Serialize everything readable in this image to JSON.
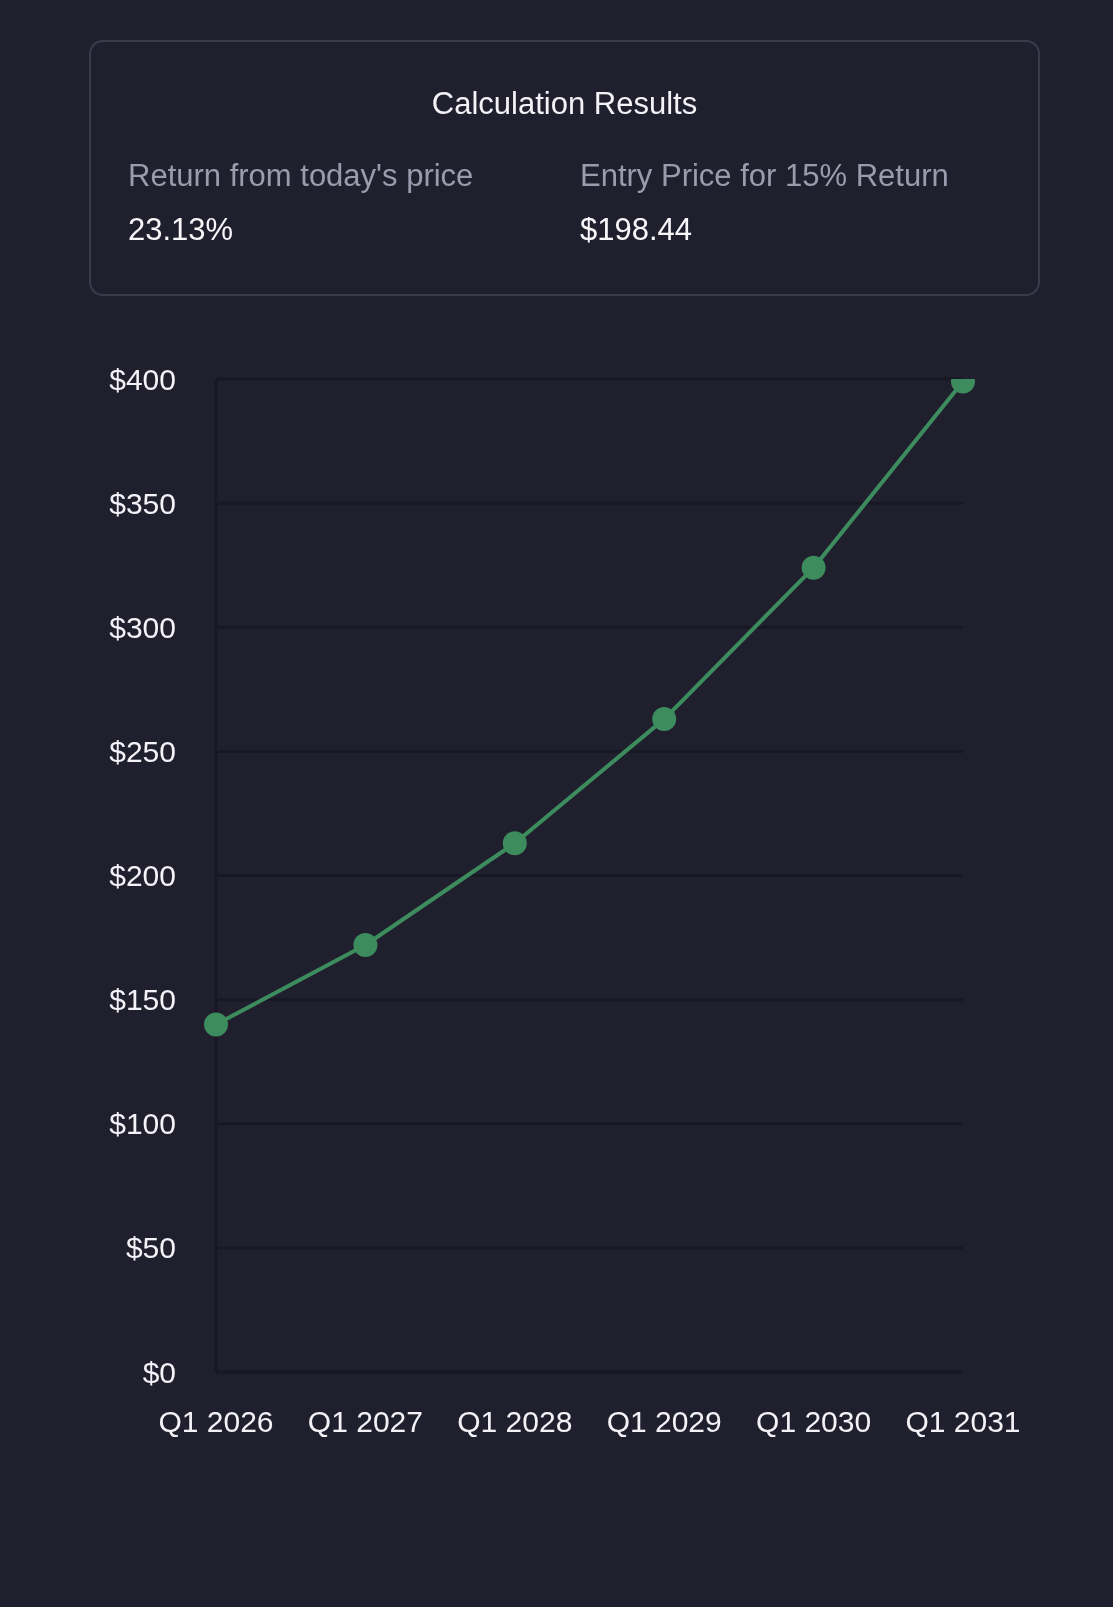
{
  "chart_data": [
    {
      "type": "other",
      "title": "Calculation Results",
      "annotations": [
        "Return from today's price",
        "23.13%",
        "Entry Price for 15% Return",
        "$198.44"
      ]
    },
    {
      "type": "line",
      "categories": [
        "Q1 2026",
        "Q1 2027",
        "Q1 2028",
        "Q1 2029",
        "Q1 2030",
        "Q1 2031"
      ],
      "series": [
        {
          "color": "#3d8c5e",
          "values": [
            140,
            172,
            213,
            263,
            324,
            399
          ]
        }
      ],
      "ylim": [
        0,
        400
      ],
      "yticks": [
        {
          "value": 0,
          "label": "$0"
        },
        {
          "value": 50,
          "label": "$50"
        },
        {
          "value": 100,
          "label": "$100"
        },
        {
          "value": 150,
          "label": "$150"
        },
        {
          "value": 200,
          "label": "$200"
        },
        {
          "value": 250,
          "label": "$250"
        },
        {
          "value": 300,
          "label": "$300"
        },
        {
          "value": 350,
          "label": "$350"
        },
        {
          "value": 400,
          "label": "$400"
        }
      ],
      "grid": "y",
      "marker": "circle"
    }
  ]
}
